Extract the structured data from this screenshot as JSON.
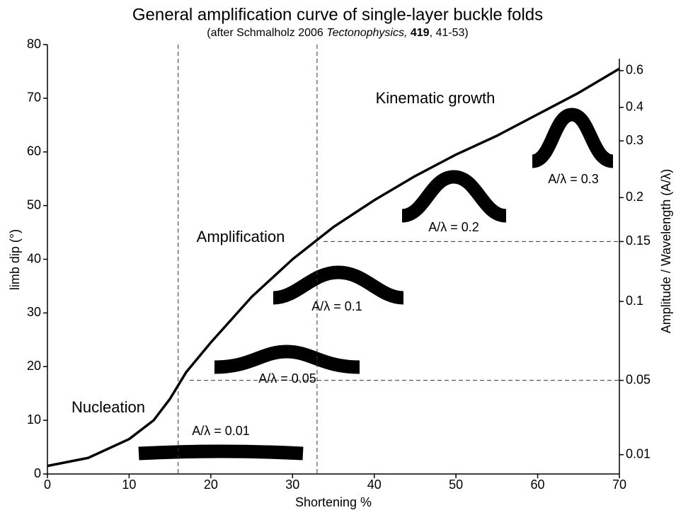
{
  "chart_data": {
    "type": "line",
    "title": "General amplification curve of single-layer buckle folds",
    "subtitle": [
      "(after Schmalholz 2006 ",
      "Tectonophysics,",
      " 419",
      ", 41-53)"
    ],
    "x_label": "Shortening %",
    "y_label": "limb dip (°)",
    "y2_label": "Amplitude / Wavelength (A/λ)",
    "x": [
      0,
      5,
      10,
      13,
      15,
      17,
      20,
      25,
      30,
      35,
      40,
      45,
      50,
      55,
      60,
      65,
      70
    ],
    "series": [
      {
        "name": "limb dip",
        "color": "#000000",
        "values": [
          1.5,
          3,
          6.5,
          10,
          14,
          19,
          24.5,
          33,
          40,
          46,
          51,
          55.5,
          59.5,
          63,
          67,
          71,
          75.5
        ]
      }
    ],
    "xlim": [
      0,
      70
    ],
    "xticks": [
      0,
      10,
      20,
      30,
      40,
      50,
      60,
      70
    ],
    "ylim": [
      0,
      80
    ],
    "yticks": [
      0,
      10,
      20,
      30,
      40,
      50,
      60,
      70,
      80
    ],
    "y2lim": [
      0,
      0.9
    ],
    "y2ticks": [
      0.01,
      0.05,
      0.1,
      0.15,
      0.2,
      0.3,
      0.4,
      0.6
    ],
    "y2_scale": "arctan",
    "vlines": [
      16,
      33
    ],
    "hlines_y2": [
      0.05,
      0.15
    ],
    "annotations": [
      "Nucleation",
      "Amplification",
      "Kinematic growth",
      "A/λ = 0.01",
      "A/λ = 0.05",
      "A/λ = 0.1",
      "A/λ = 0.2",
      "A/λ = 0.3"
    ]
  }
}
